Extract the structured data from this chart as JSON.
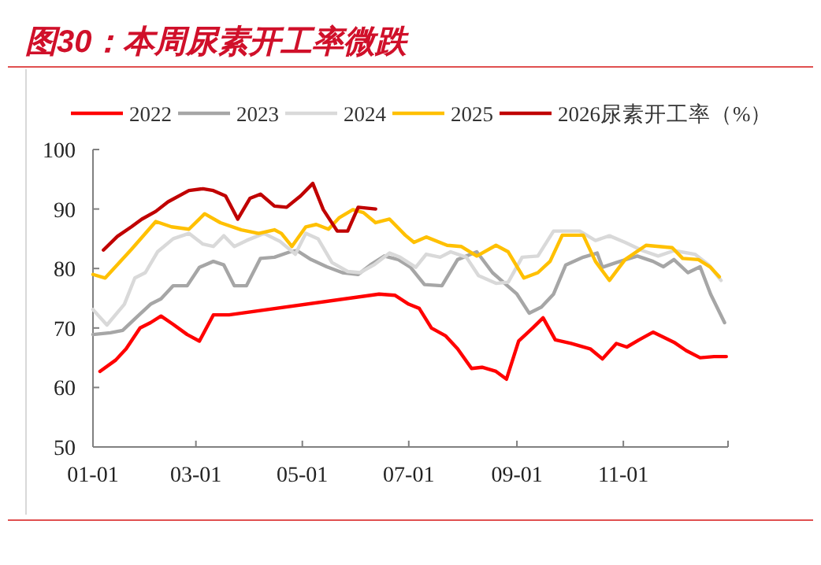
{
  "chart_data": {
    "type": "line",
    "title": "图30：本周尿素开工率微跌",
    "legend": "top",
    "xlim": [
      "--01-01",
      "--12-31"
    ],
    "xticks": [
      {
        "value": "--01-01",
        "label": "01-01"
      },
      {
        "value": "--03-01",
        "label": "03-01"
      },
      {
        "value": "--05-01",
        "label": "05-01"
      },
      {
        "value": "--07-01",
        "label": "07-01"
      },
      {
        "value": "--09-01",
        "label": "09-01"
      },
      {
        "value": "--11-01",
        "label": "11-01"
      },
      {
        "value": "--12-31",
        "label": null
      }
    ],
    "ylim": [
      50,
      100
    ],
    "yticks": [
      50,
      60,
      70,
      80,
      90,
      100
    ],
    "series": [
      {
        "name": "2022",
        "color": "#ff0000",
        "x": [
          "--01-05",
          "--01-14",
          "--01-20",
          "--01-28",
          "--02-03",
          "--02-09",
          "--02-16",
          "--02-24",
          "--03-03",
          "--03-11",
          "--03-20",
          "--06-14",
          "--06-23",
          "--07-01",
          "--07-07",
          "--07-14",
          "--07-22",
          "--07-29",
          "--08-06",
          "--08-12",
          "--08-20",
          "--08-26",
          "--09-02",
          "--09-10",
          "--09-16",
          "--09-23",
          "--10-02",
          "--10-13",
          "--10-20",
          "--10-28",
          "--11-03",
          "--11-10",
          "--11-18",
          "--11-30",
          "--12-07",
          "--12-15",
          "--12-23",
          "--12-30"
        ],
        "values": [
          62.7,
          64.6,
          66.5,
          70,
          70.9,
          72,
          70.6,
          68.9,
          67.8,
          72.2,
          72.2,
          75.7,
          75.5,
          74,
          73.3,
          70,
          68.7,
          66.5,
          63.2,
          63.4,
          62.7,
          61.4,
          67.8,
          70,
          71.7,
          68,
          67.4,
          66.5,
          64.8,
          67.4,
          66.8,
          68,
          69.3,
          67.6,
          66.2,
          65,
          65.2,
          65.2
        ]
      },
      {
        "name": "2023",
        "color": "#a6a6a6",
        "x": [
          "--01-01",
          "--01-11",
          "--01-18",
          "--01-26",
          "--02-03",
          "--02-09",
          "--02-16",
          "--02-24",
          "--03-03",
          "--03-11",
          "--03-17",
          "--03-23",
          "--03-30",
          "--04-07",
          "--04-15",
          "--04-24",
          "--04-28",
          "--05-06",
          "--05-15",
          "--05-24",
          "--06-02",
          "--06-09",
          "--06-17",
          "--06-25",
          "--07-02",
          "--07-10",
          "--07-20",
          "--07-29",
          "--08-09",
          "--08-18",
          "--08-25",
          "--09-01",
          "--09-08",
          "--09-15",
          "--09-22",
          "--09-29",
          "--10-09",
          "--10-17",
          "--10-20",
          "--10-28",
          "--11-09",
          "--11-18",
          "--11-24",
          "--11-30",
          "--12-08",
          "--12-15",
          "--12-21",
          "--12-29"
        ],
        "values": [
          68.9,
          69.2,
          69.6,
          71.8,
          74,
          74.9,
          77.1,
          77.1,
          80.2,
          81.2,
          80.6,
          77.1,
          77.1,
          81.7,
          81.9,
          82.8,
          83,
          81.5,
          80.3,
          79.3,
          79,
          80.6,
          82.1,
          81.5,
          80.2,
          77.3,
          77.1,
          81.5,
          82.8,
          79.3,
          77.5,
          75.7,
          72.5,
          73.5,
          75.7,
          80.6,
          81.9,
          82.6,
          80.2,
          81,
          82.1,
          81.2,
          80.3,
          81.5,
          79.3,
          80.3,
          75.7,
          70.9
        ]
      },
      {
        "name": "2024",
        "color": "#d9d9d9",
        "x": [
          "--01-01",
          "--01-09",
          "--01-19",
          "--01-25",
          "--01-31",
          "--02-07",
          "--02-16",
          "--02-25",
          "--03-05",
          "--03-11",
          "--03-17",
          "--03-23",
          "--03-30",
          "--04-09",
          "--04-18",
          "--04-27",
          "--05-03",
          "--05-10",
          "--05-18",
          "--05-27",
          "--06-03",
          "--06-11",
          "--06-20",
          "--06-26",
          "--07-05",
          "--07-11",
          "--07-19",
          "--07-25",
          "--08-03",
          "--08-10",
          "--08-20",
          "--08-27",
          "--09-04",
          "--09-13",
          "--09-22",
          "--10-07",
          "--10-16",
          "--10-24",
          "--11-02",
          "--11-12",
          "--11-21",
          "--11-30",
          "--12-12",
          "--12-20",
          "--12-27"
        ],
        "values": [
          73.1,
          70.5,
          74,
          78.4,
          79.3,
          82.8,
          85,
          85.9,
          84.1,
          83.7,
          85.5,
          83.7,
          84.7,
          85.9,
          84.6,
          82.4,
          85.9,
          85,
          81,
          79.5,
          79.3,
          80.6,
          82.6,
          81.9,
          80.2,
          82.4,
          81.9,
          82.8,
          81.9,
          78.8,
          77.5,
          77.7,
          81.9,
          82.1,
          86.3,
          86.3,
          84.7,
          85.5,
          84.4,
          83,
          82.1,
          83,
          82.4,
          80.6,
          78
        ]
      },
      {
        "name": "2025",
        "color": "#ffc000",
        "x": [
          "--01-01",
          "--01-08",
          "--01-23",
          "--02-06",
          "--02-15",
          "--02-25",
          "--03-06",
          "--03-15",
          "--03-27",
          "--04-06",
          "--04-15",
          "--04-19",
          "--04-25",
          "--05-03",
          "--05-09",
          "--05-16",
          "--05-22",
          "--05-30",
          "--06-05",
          "--06-12",
          "--06-20",
          "--06-29",
          "--07-04",
          "--07-11",
          "--07-23",
          "--07-31",
          "--08-09",
          "--08-20",
          "--08-27",
          "--09-05",
          "--09-13",
          "--09-20",
          "--09-27",
          "--10-09",
          "--10-16",
          "--10-24",
          "--11-02",
          "--11-14",
          "--11-29",
          "--12-05",
          "--12-14",
          "--12-21",
          "--12-26"
        ],
        "values": [
          79,
          78.4,
          83.2,
          87.9,
          87,
          86.6,
          89.2,
          87.7,
          86.5,
          85.9,
          86.5,
          85.9,
          83.7,
          87,
          87.4,
          86.6,
          88.5,
          89.9,
          89.4,
          87.7,
          88.3,
          85.6,
          84.4,
          85.3,
          83.9,
          83.7,
          82.1,
          83.9,
          82.8,
          78.4,
          79.3,
          81.2,
          85.6,
          85.6,
          81.2,
          78,
          81.5,
          83.9,
          83.5,
          81.7,
          81.5,
          80.2,
          78.6
        ]
      },
      {
        "name": "2026尿素开工率（%）",
        "color": "#c00000",
        "x": [
          "--01-07",
          "--01-15",
          "--01-23",
          "--01-29",
          "--02-06",
          "--02-13",
          "--02-25",
          "--03-05",
          "--03-11",
          "--03-18",
          "--03-25",
          "--04-01",
          "--04-07",
          "--04-15",
          "--04-22",
          "--04-30",
          "--05-07",
          "--05-13",
          "--05-21",
          "--05-27",
          "--06-02",
          "--06-12"
        ],
        "values": [
          83.1,
          85.4,
          87,
          88.3,
          89.6,
          91.2,
          93.1,
          93.4,
          93.1,
          92.2,
          88.3,
          91.8,
          92.5,
          90.5,
          90.3,
          92.2,
          94.3,
          89.9,
          86.3,
          86.3,
          90.3,
          90
        ]
      }
    ]
  }
}
